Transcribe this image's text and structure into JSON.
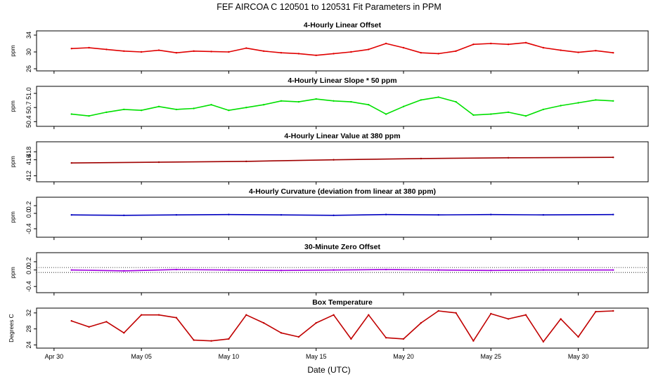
{
  "chart_data": {
    "title": "FEF   AIRCOA C   120501 to 120531   Fit Parameters in PPM",
    "xlabel": "Date (UTC)",
    "xlim": [
      "2012-04-29",
      "2012-06-03"
    ],
    "x_ticks": [
      "Apr 30",
      "May 05",
      "May 10",
      "May 15",
      "May 20",
      "May 25",
      "May 30"
    ],
    "panels": [
      {
        "type": "line",
        "title": "4-Hourly Linear Offset",
        "ylabel": "ppm",
        "ylim": [
          25.5,
          35
        ],
        "yticks": [
          "26",
          "30",
          "34"
        ],
        "color": "#e00000",
        "series": [
          {
            "x": [
              "2012-05-01",
              "2012-05-02",
              "2012-05-03",
              "2012-05-04",
              "2012-05-05",
              "2012-05-06",
              "2012-05-07",
              "2012-05-08",
              "2012-05-09",
              "2012-05-10",
              "2012-05-11",
              "2012-05-12",
              "2012-05-13",
              "2012-05-14",
              "2012-05-15",
              "2012-05-16",
              "2012-05-17",
              "2012-05-18",
              "2012-05-19",
              "2012-05-20",
              "2012-05-21",
              "2012-05-22",
              "2012-05-23",
              "2012-05-24",
              "2012-05-25",
              "2012-05-26",
              "2012-05-27",
              "2012-05-28",
              "2012-05-29",
              "2012-05-30",
              "2012-05-31",
              "2012-06-01"
            ],
            "values": [
              30.8,
              31.0,
              30.6,
              30.2,
              30.0,
              30.4,
              29.8,
              30.2,
              30.1,
              30.0,
              30.9,
              30.2,
              29.8,
              29.6,
              29.2,
              29.6,
              30.0,
              30.6,
              32.0,
              31.0,
              29.8,
              29.6,
              30.2,
              31.8,
              32.0,
              31.8,
              32.2,
              31.0,
              30.4,
              29.9,
              30.3,
              29.8
            ]
          }
        ],
        "hlines": []
      },
      {
        "type": "line",
        "title": "4-Hourly Linear Slope * 50 ppm",
        "ylabel": "ppm",
        "ylim": [
          50.3,
          51.15
        ],
        "yticks": [
          "50.4",
          "50.7",
          "51.0"
        ],
        "color": "#00e000",
        "series": [
          {
            "x": [
              "2012-05-01",
              "2012-05-02",
              "2012-05-03",
              "2012-05-04",
              "2012-05-05",
              "2012-05-06",
              "2012-05-07",
              "2012-05-08",
              "2012-05-09",
              "2012-05-10",
              "2012-05-11",
              "2012-05-12",
              "2012-05-13",
              "2012-05-14",
              "2012-05-15",
              "2012-05-16",
              "2012-05-17",
              "2012-05-18",
              "2012-05-19",
              "2012-05-20",
              "2012-05-21",
              "2012-05-22",
              "2012-05-23",
              "2012-05-24",
              "2012-05-25",
              "2012-05-26",
              "2012-05-27",
              "2012-05-28",
              "2012-05-29",
              "2012-05-30",
              "2012-05-31",
              "2012-06-01"
            ],
            "values": [
              50.56,
              50.52,
              50.6,
              50.66,
              50.64,
              50.72,
              50.66,
              50.68,
              50.76,
              50.64,
              50.7,
              50.76,
              50.84,
              50.82,
              50.88,
              50.84,
              50.82,
              50.76,
              50.56,
              50.72,
              50.86,
              50.92,
              50.82,
              50.54,
              50.56,
              50.6,
              50.52,
              50.66,
              50.74,
              50.8,
              50.86,
              50.84
            ]
          }
        ],
        "hlines": []
      },
      {
        "type": "line",
        "title": "4-Hourly Linear Value at 380 ppm",
        "ylabel": "ppm",
        "ylim": [
          410.5,
          420.5
        ],
        "yticks": [
          "412",
          "416",
          "418"
        ],
        "color": "#a00000",
        "series": [
          {
            "x": [
              "2012-05-01",
              "2012-05-06",
              "2012-05-11",
              "2012-05-16",
              "2012-05-21",
              "2012-05-26",
              "2012-06-01"
            ],
            "values": [
              415.2,
              415.4,
              415.6,
              416.0,
              416.3,
              416.5,
              416.6
            ]
          }
        ],
        "hlines": []
      },
      {
        "type": "line",
        "title": "4-Hourly Curvature (deviation from linear at 380 ppm)",
        "ylabel": "ppm",
        "ylim": [
          -0.62,
          0.42
        ],
        "yticks": [
          "-0.4",
          "0.0",
          "0.2"
        ],
        "color": "#0000c0",
        "series": [
          {
            "x": [
              "2012-05-01",
              "2012-05-04",
              "2012-05-07",
              "2012-05-10",
              "2012-05-13",
              "2012-05-16",
              "2012-05-19",
              "2012-05-22",
              "2012-05-25",
              "2012-05-28",
              "2012-06-01"
            ],
            "values": [
              -0.04,
              -0.05,
              -0.04,
              -0.03,
              -0.04,
              -0.05,
              -0.03,
              -0.04,
              -0.03,
              -0.04,
              -0.03
            ]
          }
        ],
        "hlines": []
      },
      {
        "type": "line",
        "title": "30-Minute Zero Offset",
        "ylabel": "ppm",
        "ylim": [
          -0.55,
          0.42
        ],
        "yticks": [
          "-0.4",
          "0.0",
          "0.2"
        ],
        "color": "#a000e0",
        "series": [
          {
            "x": [
              "2012-05-01",
              "2012-05-04",
              "2012-05-07",
              "2012-05-10",
              "2012-05-13",
              "2012-05-16",
              "2012-05-19",
              "2012-05-22",
              "2012-05-25",
              "2012-05-28",
              "2012-06-01"
            ],
            "values": [
              0.0,
              -0.02,
              0.01,
              0.0,
              -0.01,
              0.0,
              0.01,
              0.0,
              -0.01,
              0.0,
              0.0
            ]
          }
        ],
        "hlines": [
          0.06,
          -0.06
        ]
      },
      {
        "type": "line",
        "title": "Box Temperature",
        "ylabel": "Degrees C",
        "ylim": [
          23.2,
          33.2
        ],
        "yticks": [
          "24",
          "28",
          "32"
        ],
        "color": "#c00000",
        "series": [
          {
            "x": [
              "2012-05-01",
              "2012-05-02",
              "2012-05-03",
              "2012-05-04",
              "2012-05-05",
              "2012-05-06",
              "2012-05-07",
              "2012-05-08",
              "2012-05-09",
              "2012-05-10",
              "2012-05-11",
              "2012-05-12",
              "2012-05-13",
              "2012-05-14",
              "2012-05-15",
              "2012-05-16",
              "2012-05-17",
              "2012-05-18",
              "2012-05-19",
              "2012-05-20",
              "2012-05-21",
              "2012-05-22",
              "2012-05-23",
              "2012-05-24",
              "2012-05-25",
              "2012-05-26",
              "2012-05-27",
              "2012-05-28",
              "2012-05-29",
              "2012-05-30",
              "2012-05-31",
              "2012-06-01"
            ],
            "values": [
              30.0,
              28.5,
              29.8,
              27.0,
              31.5,
              31.5,
              30.8,
              25.2,
              25.0,
              25.5,
              31.5,
              29.5,
              27.0,
              26.0,
              29.5,
              31.5,
              25.5,
              31.5,
              25.8,
              25.5,
              29.5,
              32.5,
              32.0,
              25.0,
              31.8,
              30.5,
              31.5,
              24.8,
              30.5,
              26.0,
              32.3,
              32.5
            ]
          }
        ],
        "hlines": []
      }
    ]
  }
}
